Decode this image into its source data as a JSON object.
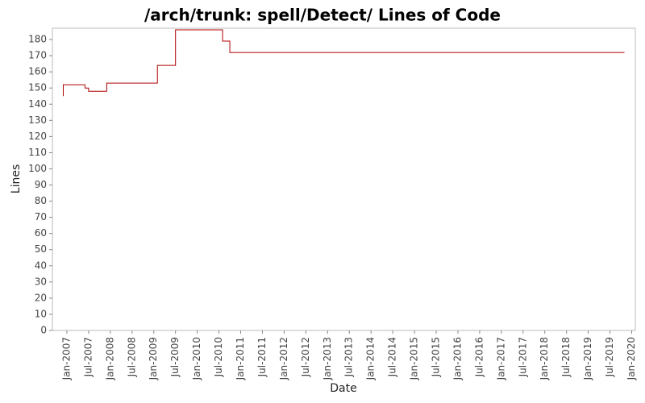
{
  "chart_data": {
    "type": "step",
    "title": "/arch/trunk: spell/Detect/ Lines of Code",
    "x_label": "Date",
    "y_label": "Lines",
    "series": [
      {
        "name": "Lines",
        "color": "#b00000",
        "x": [
          "2006-12",
          "2006-12",
          "2007-06",
          "2007-07",
          "2007-12",
          "2009-02",
          "2009-07",
          "2010-08",
          "2010-10",
          "2019-11"
        ],
        "values": [
          145,
          152,
          150,
          148,
          153,
          164,
          186,
          179,
          172,
          172
        ]
      }
    ],
    "xlim": [
      "2006-09",
      "2020-02"
    ],
    "xticks": [
      {
        "value": "2007-01",
        "label": "Jan-2007"
      },
      {
        "value": "2007-07",
        "label": "Jul-2007"
      },
      {
        "value": "2008-01",
        "label": "Jan-2008"
      },
      {
        "value": "2008-07",
        "label": "Jul-2008"
      },
      {
        "value": "2009-01",
        "label": "Jan-2009"
      },
      {
        "value": "2009-07",
        "label": "Jul-2009"
      },
      {
        "value": "2010-01",
        "label": "Jan-2010"
      },
      {
        "value": "2010-07",
        "label": "Jul-2010"
      },
      {
        "value": "2011-01",
        "label": "Jan-2011"
      },
      {
        "value": "2011-07",
        "label": "Jul-2011"
      },
      {
        "value": "2012-01",
        "label": "Jan-2012"
      },
      {
        "value": "2012-07",
        "label": "Jul-2012"
      },
      {
        "value": "2013-01",
        "label": "Jan-2013"
      },
      {
        "value": "2013-07",
        "label": "Jul-2013"
      },
      {
        "value": "2014-01",
        "label": "Jan-2014"
      },
      {
        "value": "2014-07",
        "label": "Jul-2014"
      },
      {
        "value": "2015-01",
        "label": "Jan-2015"
      },
      {
        "value": "2015-07",
        "label": "Jul-2015"
      },
      {
        "value": "2016-01",
        "label": "Jan-2016"
      },
      {
        "value": "2016-07",
        "label": "Jul-2016"
      },
      {
        "value": "2017-01",
        "label": "Jan-2017"
      },
      {
        "value": "2017-07",
        "label": "Jul-2017"
      },
      {
        "value": "2018-01",
        "label": "Jan-2018"
      },
      {
        "value": "2018-07",
        "label": "Jul-2018"
      },
      {
        "value": "2019-01",
        "label": "Jan-2019"
      },
      {
        "value": "2019-07",
        "label": "Jul-2019"
      },
      {
        "value": "2020-01",
        "label": "Jan-2020"
      }
    ],
    "ylim": [
      0,
      187
    ],
    "yticks": [
      0,
      10,
      20,
      30,
      40,
      50,
      60,
      70,
      80,
      90,
      100,
      110,
      120,
      130,
      140,
      150,
      160,
      170,
      180
    ],
    "grid": false
  }
}
